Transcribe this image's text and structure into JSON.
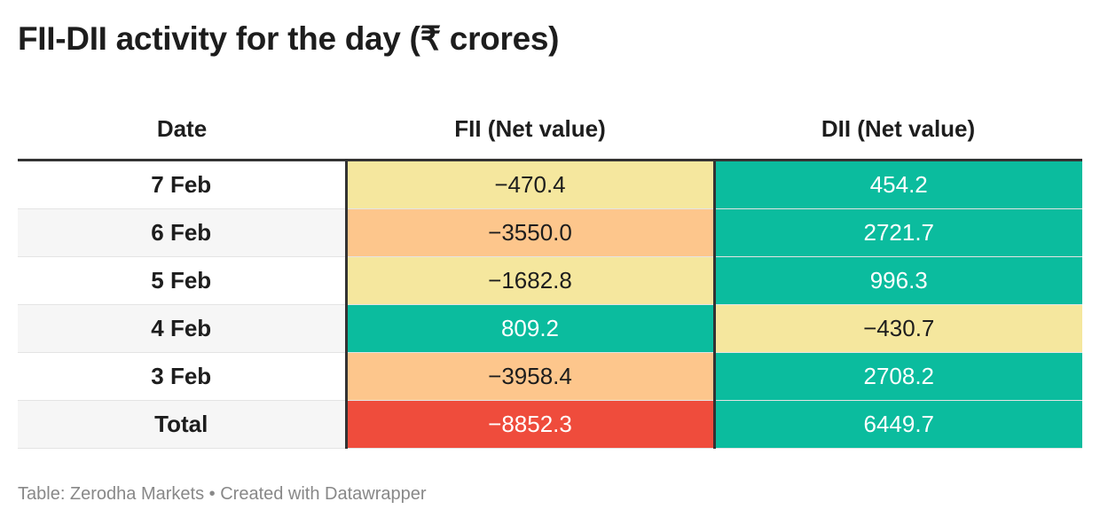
{
  "title": "FII-DII activity for the day (₹ crores)",
  "headers": {
    "date": "Date",
    "fii": "FII (Net value)",
    "dii": "DII (Net value)"
  },
  "rows": [
    {
      "date": "7 Feb",
      "fii": "−470.4",
      "dii": "454.2",
      "fii_color": "#f5e79e",
      "fii_text": "#1d1d1d",
      "dii_color": "#0bbc9e",
      "dii_text": "#ffffff"
    },
    {
      "date": "6 Feb",
      "fii": "−3550.0",
      "dii": "2721.7",
      "fii_color": "#fdc68c",
      "fii_text": "#1d1d1d",
      "dii_color": "#0bbc9e",
      "dii_text": "#ffffff"
    },
    {
      "date": "5 Feb",
      "fii": "−1682.8",
      "dii": "996.3",
      "fii_color": "#f5e79e",
      "fii_text": "#1d1d1d",
      "dii_color": "#0bbc9e",
      "dii_text": "#ffffff"
    },
    {
      "date": "4 Feb",
      "fii": "809.2",
      "dii": "−430.7",
      "fii_color": "#0bbc9e",
      "fii_text": "#ffffff",
      "dii_color": "#f5e79e",
      "dii_text": "#1d1d1d"
    },
    {
      "date": "3 Feb",
      "fii": "−3958.4",
      "dii": "2708.2",
      "fii_color": "#fdc68c",
      "fii_text": "#1d1d1d",
      "dii_color": "#0bbc9e",
      "dii_text": "#ffffff"
    },
    {
      "date": "Total",
      "fii": "−8852.3",
      "dii": "6449.7",
      "fii_color": "#ef4c3c",
      "fii_text": "#ffffff",
      "dii_color": "#0bbc9e",
      "dii_text": "#ffffff"
    }
  ],
  "footer": {
    "source": "Table: Zerodha Markets • Created with Datawrapper"
  }
}
